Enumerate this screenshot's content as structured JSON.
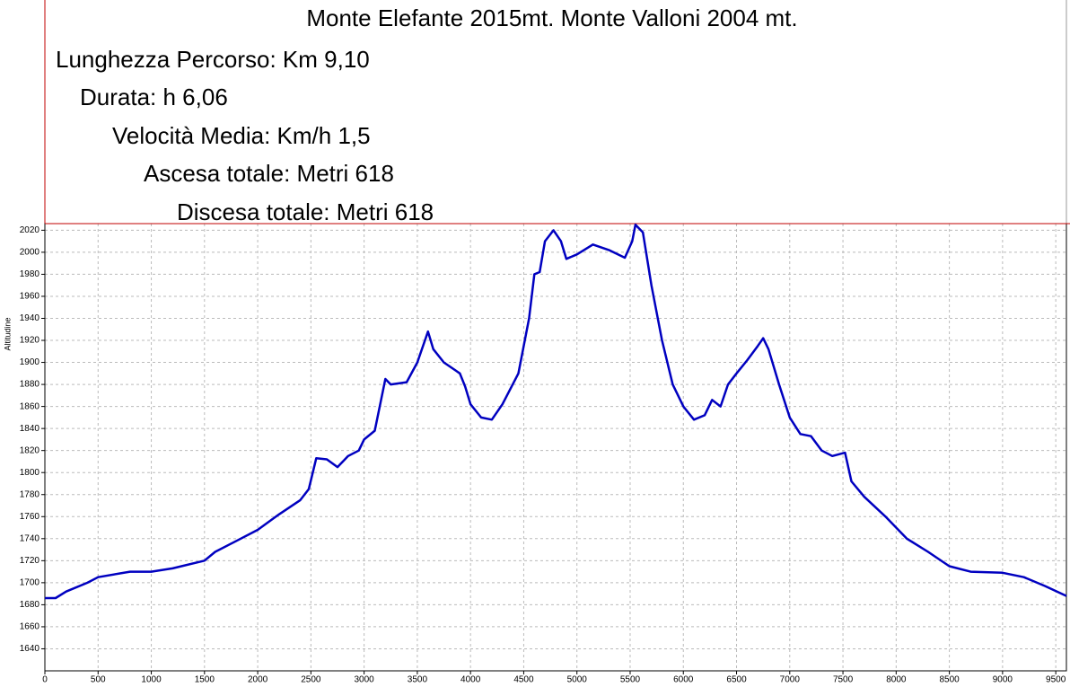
{
  "chart_data": {
    "type": "line",
    "title": "Monte Elefante 2015mt. Monte Valloni 2004 mt.",
    "annotations": [
      "Lunghezza Percorso: Km 9,10",
      "Durata: h 6,06",
      "Velocità Media: Km/h 1,5",
      "Ascesa totale: Metri 618",
      "Discesa totale: Metri 618"
    ],
    "y_label": "Altitudine",
    "x": [
      0,
      100,
      200,
      400,
      500,
      800,
      1000,
      1200,
      1500,
      1600,
      1800,
      2000,
      2200,
      2400,
      2480,
      2550,
      2650,
      2750,
      2850,
      2950,
      3000,
      3100,
      3200,
      3250,
      3400,
      3500,
      3600,
      3650,
      3750,
      3900,
      3950,
      4000,
      4100,
      4200,
      4300,
      4450,
      4550,
      4600,
      4650,
      4700,
      4780,
      4850,
      4900,
      5000,
      5150,
      5300,
      5450,
      5520,
      5550,
      5620,
      5700,
      5800,
      5900,
      6000,
      6100,
      6200,
      6270,
      6350,
      6420,
      6500,
      6600,
      6700,
      6750,
      6800,
      6900,
      7000,
      7100,
      7200,
      7300,
      7400,
      7520,
      7580,
      7700,
      7900,
      8000,
      8100,
      8300,
      8500,
      8700,
      9000,
      9200,
      9400,
      9600
    ],
    "series": [
      {
        "name": "Altitudine",
        "color": "#0000c0",
        "values": [
          1686,
          1686,
          1692,
          1700,
          1705,
          1710,
          1710,
          1713,
          1720,
          1728,
          1738,
          1748,
          1762,
          1775,
          1785,
          1813,
          1812,
          1805,
          1815,
          1820,
          1830,
          1838,
          1885,
          1880,
          1882,
          1900,
          1928,
          1912,
          1900,
          1890,
          1878,
          1862,
          1850,
          1848,
          1862,
          1890,
          1940,
          1980,
          1982,
          2010,
          2020,
          2010,
          1994,
          1998,
          2007,
          2002,
          1995,
          2010,
          2025,
          2018,
          1970,
          1920,
          1880,
          1860,
          1848,
          1852,
          1866,
          1860,
          1880,
          1890,
          1902,
          1915,
          1922,
          1912,
          1880,
          1850,
          1835,
          1833,
          1820,
          1815,
          1818,
          1792,
          1778,
          1760,
          1750,
          1740,
          1728,
          1715,
          1710,
          1709,
          1705,
          1697,
          1688
        ]
      }
    ],
    "xlim": [
      0,
      9600
    ],
    "ylim": [
      1620,
      2026
    ],
    "xticks": [
      0,
      500,
      1000,
      1500,
      2000,
      2500,
      3000,
      3500,
      4000,
      4500,
      5000,
      5500,
      6000,
      6500,
      7000,
      7500,
      8000,
      8500,
      9000,
      9500
    ],
    "yticks": [
      1640,
      1660,
      1680,
      1700,
      1720,
      1740,
      1760,
      1780,
      1800,
      1820,
      1840,
      1860,
      1880,
      1900,
      1920,
      1940,
      1960,
      1980,
      2000,
      2020
    ],
    "grid": true
  }
}
